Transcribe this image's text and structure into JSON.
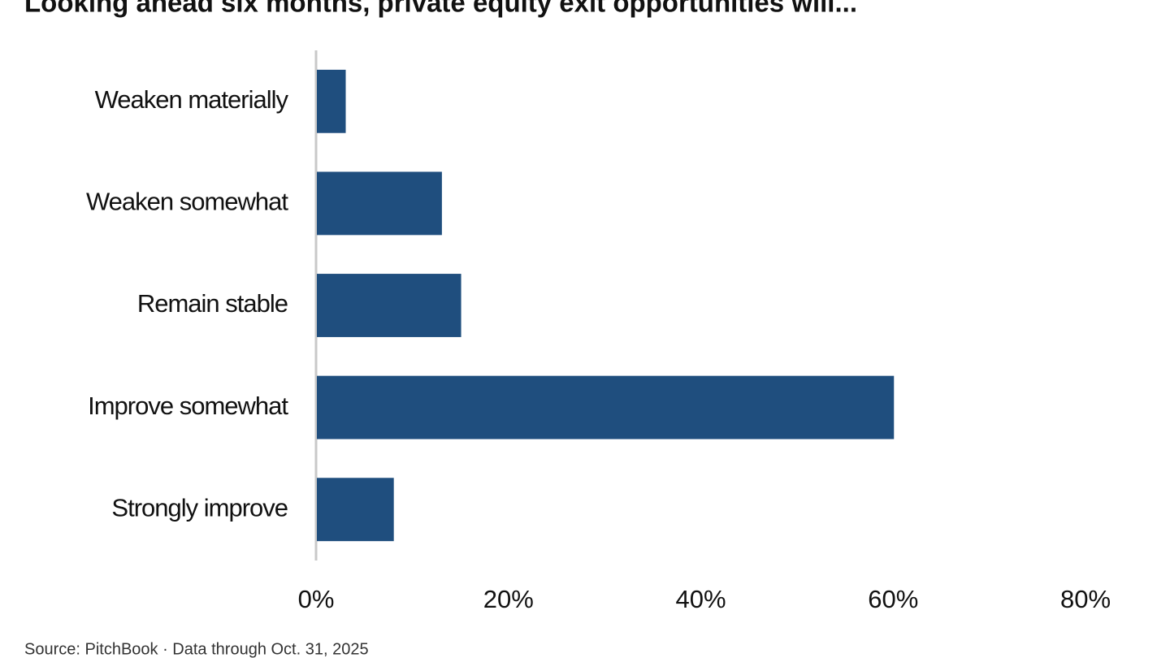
{
  "chart_data": {
    "type": "bar",
    "orientation": "horizontal",
    "title": "Looking ahead six months, private equity exit opportunities will...",
    "categories": [
      "Weaken materially",
      "Weaken somewhat",
      "Remain stable",
      "Improve somewhat",
      "Strongly improve"
    ],
    "values": [
      3,
      13,
      15,
      60,
      8
    ],
    "color": "#1f4e7e",
    "xlim": [
      0,
      80
    ],
    "xticks": [
      {
        "value": 0,
        "label": "0%"
      },
      {
        "value": 20,
        "label": "20%"
      },
      {
        "value": 40,
        "label": "40%"
      },
      {
        "value": 60,
        "label": "60%"
      },
      {
        "value": 80,
        "label": "80%"
      }
    ],
    "grid": false,
    "source": "Source: PitchBook · Data through Oct. 31, 2025"
  }
}
